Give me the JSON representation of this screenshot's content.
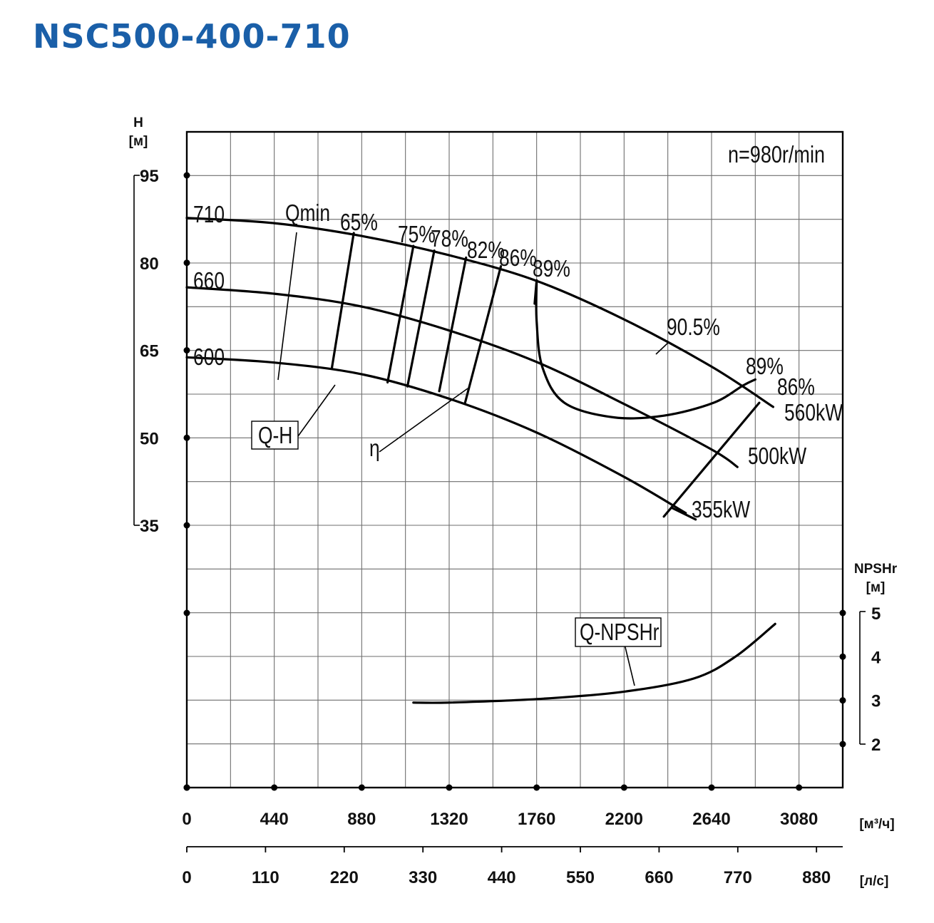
{
  "title": "NSC500-400-710",
  "title_color": "#1a5fa8",
  "chart_data": {
    "type": "line",
    "speed_label": "n=980r/min",
    "head_axis": {
      "label": "H",
      "unit": "[м]",
      "ticks": [
        95,
        80,
        65,
        50,
        35
      ],
      "ylim": [
        35,
        95
      ]
    },
    "npsh_axis": {
      "label": "NPSHr",
      "unit": "[м]",
      "ticks": [
        5,
        4,
        3,
        2
      ],
      "ylim": [
        2,
        5
      ]
    },
    "flow_axis_m3h": {
      "unit": "[м³/ч]",
      "ticks": [
        0,
        440,
        880,
        1320,
        1760,
        2200,
        2640,
        3080
      ],
      "xlim": [
        0,
        3300
      ]
    },
    "flow_axis_ls": {
      "unit": "[л/с]",
      "ticks": [
        0,
        110,
        220,
        330,
        440,
        550,
        660,
        770,
        880
      ]
    },
    "qh_label": "Q-H",
    "eta_label": "η",
    "npsh_label": "Q-NPSHr",
    "qmin_label": "Qmin",
    "series": [
      {
        "name": "710",
        "x": [
          0,
          440,
          880,
          1320,
          1760,
          2200,
          2640,
          2950
        ],
        "y": [
          87.7,
          86.8,
          84.6,
          81.3,
          76.9,
          70.3,
          62.2,
          55.3
        ]
      },
      {
        "name": "660",
        "x": [
          0,
          440,
          880,
          1320,
          1760,
          2200,
          2640,
          2770
        ],
        "y": [
          75.8,
          74.7,
          72.5,
          68.4,
          63.0,
          55.8,
          48.0,
          45.0
        ]
      },
      {
        "name": "600",
        "x": [
          0,
          440,
          880,
          1320,
          1760,
          2200,
          2510
        ],
        "y": [
          63.8,
          62.9,
          60.9,
          56.7,
          50.9,
          43.3,
          37.1
        ]
      }
    ],
    "efficiency_labels": [
      "65%",
      "75%",
      "78%",
      "82%",
      "86%",
      "89%",
      "90.5%",
      "89%",
      "86%"
    ],
    "efficiency_lines": [
      {
        "label": "65%",
        "x": [
          840,
          730
        ],
        "y": [
          85.1,
          62.0
        ]
      },
      {
        "label": "75%",
        "x": [
          1140,
          1010
        ],
        "y": [
          82.9,
          59.5
        ]
      },
      {
        "label": "78%",
        "x": [
          1245,
          1110
        ],
        "y": [
          82.1,
          58.8
        ]
      },
      {
        "label": "82%",
        "x": [
          1405,
          1270
        ],
        "y": [
          80.9,
          58.0
        ]
      },
      {
        "label": "86%",
        "x": [
          1580,
          1400
        ],
        "y": [
          79.4,
          56.0
        ]
      },
      {
        "label": "89%",
        "x": [
          1760,
          1750
        ],
        "y": [
          77.0,
          73.0
        ]
      }
    ],
    "efficiency_loop_89": {
      "x": [
        1760,
        1760,
        1790,
        1900,
        2150,
        2400,
        2650,
        2800,
        2860
      ],
      "y": [
        77.0,
        70.0,
        62.0,
        56.0,
        53.5,
        53.8,
        56.0,
        59.0,
        60.0
      ]
    },
    "power_lines": [
      {
        "label": "560kW",
        "x": [
          2400,
          2880
        ],
        "y": [
          36.5,
          56.0
        ]
      },
      {
        "label": "500kW"
      },
      {
        "label": "355kW"
      }
    ],
    "npshr": {
      "x": [
        1140,
        1320,
        1760,
        2200,
        2550,
        2760,
        2960
      ],
      "y": [
        2.95,
        2.95,
        3.03,
        3.2,
        3.5,
        4.0,
        4.75
      ]
    }
  }
}
